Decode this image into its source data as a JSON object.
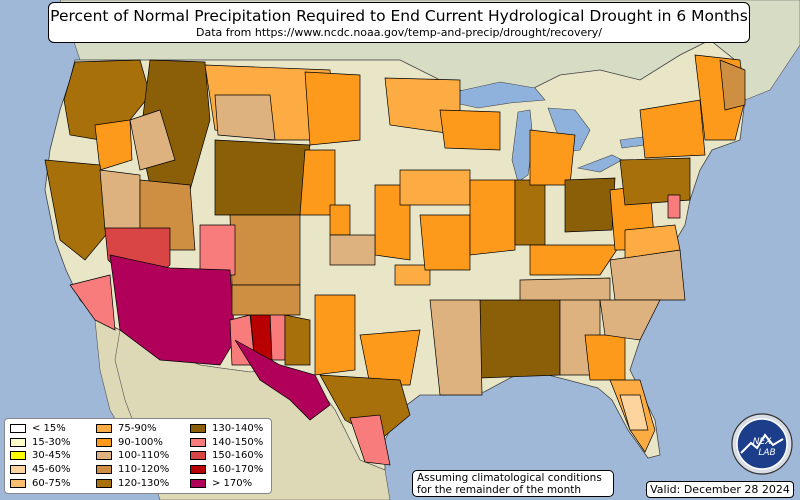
{
  "title": "Percent of Normal Precipitation Required to End Current Hydrological Drought in 6 Months",
  "subtitle": "Data from https://www.ncdc.noaa.gov/temp-and-precip/drought/recovery/",
  "legend": [
    {
      "label": "< 15%",
      "color": "#ffffff"
    },
    {
      "label": "15-30%",
      "color": "#ffffc8"
    },
    {
      "label": "30-45%",
      "color": "#ffff00"
    },
    {
      "label": "45-60%",
      "color": "#fdd49e"
    },
    {
      "label": "60-75%",
      "color": "#f9bf6e"
    },
    {
      "label": "75-90%",
      "color": "#fcac42"
    },
    {
      "label": "90-100%",
      "color": "#fd9a1c"
    },
    {
      "label": "100-110%",
      "color": "#deb27e"
    },
    {
      "label": "110-120%",
      "color": "#cf8f42"
    },
    {
      "label": "120-130%",
      "color": "#a8700a"
    },
    {
      "label": "130-140%",
      "color": "#8b5e08"
    },
    {
      "label": "140-150%",
      "color": "#f87c7c"
    },
    {
      "label": "150-160%",
      "color": "#d94444"
    },
    {
      "label": "160-170%",
      "color": "#b80000"
    },
    {
      "label": "> 170%",
      "color": "#b0005a"
    }
  ],
  "note": {
    "line1": "Assuming climatological conditions",
    "line2": "for the remainder of the month"
  },
  "valid": "Valid: December 28 2024",
  "logo_text": "NEXLAB",
  "colors": {
    "ocean": "#9fb8d8",
    "land": "#e9e6c8",
    "lake": "#8fb2dc"
  }
}
